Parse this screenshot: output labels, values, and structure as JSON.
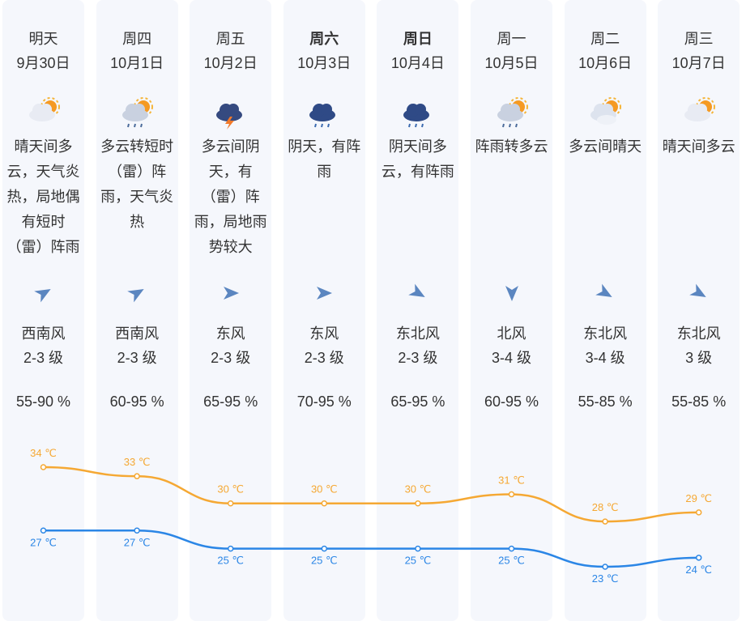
{
  "days": [
    {
      "day": "明天",
      "date": "9月30日",
      "weather": "晴天间多云，天气炎热，局地偶有短时（雷）阵雨",
      "wind_dir": "西南风",
      "wind_level": "2-3 级",
      "humidity": "55-90 %"
    },
    {
      "day": "周四",
      "date": "10月1日",
      "weather": "多云转短时（雷）阵雨，天气炎热",
      "wind_dir": "西南风",
      "wind_level": "2-3 级",
      "humidity": "60-95 %"
    },
    {
      "day": "周五",
      "date": "10月2日",
      "weather": "多云间阴天，有（雷）阵雨，局地雨势较大",
      "wind_dir": "东风",
      "wind_level": "2-3 级",
      "humidity": "65-95 %"
    },
    {
      "day": "周六",
      "date": "10月3日",
      "weather": "阴天，有阵雨",
      "wind_dir": "东风",
      "wind_level": "2-3 级",
      "humidity": "70-95 %"
    },
    {
      "day": "周日",
      "date": "10月4日",
      "weather": "阴天间多云，有阵雨",
      "wind_dir": "东北风",
      "wind_level": "2-3 级",
      "humidity": "65-95 %"
    },
    {
      "day": "周一",
      "date": "10月5日",
      "weather": "阵雨转多云",
      "wind_dir": "北风",
      "wind_level": "3-4 级",
      "humidity": "60-95 %"
    },
    {
      "day": "周二",
      "date": "10月6日",
      "weather": "多云间晴天",
      "wind_dir": "东北风",
      "wind_level": "3-4 级",
      "humidity": "55-85 %"
    },
    {
      "day": "周三",
      "date": "10月7日",
      "weather": "晴天间多云",
      "wind_dir": "东北风",
      "wind_level": "3 级",
      "humidity": "55-85 %"
    }
  ],
  "chart_data": {
    "type": "line",
    "series": [
      {
        "name": "high",
        "color": "#f5a833",
        "values": [
          34,
          33,
          30,
          30,
          30,
          31,
          28,
          29
        ],
        "value_labels": [
          "34 ℃",
          "33 ℃",
          "30 ℃",
          "30 ℃",
          "30 ℃",
          "31 ℃",
          "28 ℃",
          "29 ℃"
        ]
      },
      {
        "name": "low",
        "color": "#2b86e6",
        "values": [
          27,
          27,
          25,
          25,
          25,
          25,
          23,
          24
        ],
        "value_labels": [
          "27 ℃",
          "27 ℃",
          "25 ℃",
          "25 ℃",
          "25 ℃",
          "25 ℃",
          "23 ℃",
          "24 ℃"
        ]
      }
    ]
  }
}
